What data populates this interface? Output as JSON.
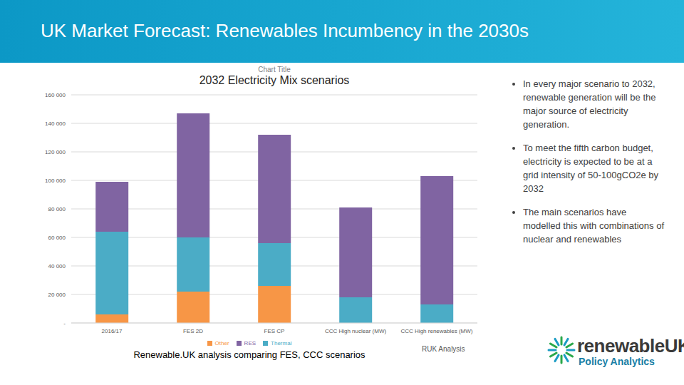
{
  "header": {
    "title": "UK Market Forecast: Renewables Incumbency in the 2030s"
  },
  "bullets": [
    "In every major scenario to 2032, renewable generation will be the major source of electricity generation.",
    "To meet the fifth carbon budget, electricity is expected to be at a grid intensity of 50-100gCO2e by 2032",
    "The main scenarios have modelled this with combinations of nuclear and renewables"
  ],
  "caption": "Renewable.UK analysis comparing FES, CCC scenarios",
  "logo": {
    "name": "renewableUK",
    "subtitle": "Policy Analytics"
  },
  "chart_data": {
    "type": "bar",
    "title": "2032 Electricity Mix scenarios",
    "annotations": [
      "Chart Title",
      "RUK Analysis"
    ],
    "stacked": true,
    "grid": true,
    "legend": "bottom",
    "categories": [
      "2016/17",
      "FES 2D",
      "FES CP",
      "CCC High nuclear (MW)",
      "CCC High renewables (MW)"
    ],
    "series": [
      {
        "name": "Other",
        "color": "#f79646",
        "values": [
          6000,
          22000,
          26000,
          0,
          0
        ]
      },
      {
        "name": "Thermal",
        "color": "#4bacc6",
        "values": [
          58000,
          38000,
          30000,
          18000,
          13000
        ]
      },
      {
        "name": "RES",
        "color": "#8064a2",
        "values": [
          35000,
          87000,
          76000,
          63000,
          90000
        ]
      }
    ],
    "ylim": [
      0,
      160000
    ],
    "yticks": [
      {
        "value": 0,
        "label": "-"
      },
      {
        "value": 20000,
        "label": "20 000"
      },
      {
        "value": 40000,
        "label": "40 000"
      },
      {
        "value": 60000,
        "label": "60 000"
      },
      {
        "value": 80000,
        "label": "80 000"
      },
      {
        "value": 100000,
        "label": "100 000"
      },
      {
        "value": 120000,
        "label": "120 000"
      },
      {
        "value": 140000,
        "label": "140 000"
      },
      {
        "value": 160000,
        "label": "160 000"
      }
    ]
  }
}
